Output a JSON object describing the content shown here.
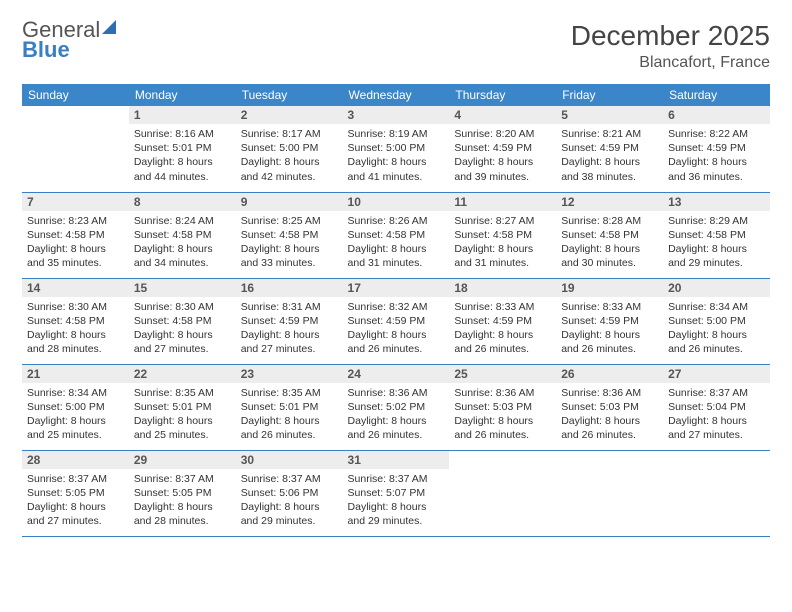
{
  "logo": {
    "line1": "General",
    "line2": "Blue"
  },
  "title": "December 2025",
  "location": "Blancafort, France",
  "colors": {
    "header_bg": "#3a86c8",
    "header_fg": "#ffffff",
    "daynum_bg": "#ededed",
    "border": "#3a7fc4",
    "text": "#333333",
    "logo_gray": "#555555",
    "logo_blue": "#3a7fc4"
  },
  "weekdays": [
    "Sunday",
    "Monday",
    "Tuesday",
    "Wednesday",
    "Thursday",
    "Friday",
    "Saturday"
  ],
  "weeks": [
    [
      null,
      {
        "n": "1",
        "sr": "8:16 AM",
        "ss": "5:01 PM",
        "dl": "8 hours and 44 minutes."
      },
      {
        "n": "2",
        "sr": "8:17 AM",
        "ss": "5:00 PM",
        "dl": "8 hours and 42 minutes."
      },
      {
        "n": "3",
        "sr": "8:19 AM",
        "ss": "5:00 PM",
        "dl": "8 hours and 41 minutes."
      },
      {
        "n": "4",
        "sr": "8:20 AM",
        "ss": "4:59 PM",
        "dl": "8 hours and 39 minutes."
      },
      {
        "n": "5",
        "sr": "8:21 AM",
        "ss": "4:59 PM",
        "dl": "8 hours and 38 minutes."
      },
      {
        "n": "6",
        "sr": "8:22 AM",
        "ss": "4:59 PM",
        "dl": "8 hours and 36 minutes."
      }
    ],
    [
      {
        "n": "7",
        "sr": "8:23 AM",
        "ss": "4:58 PM",
        "dl": "8 hours and 35 minutes."
      },
      {
        "n": "8",
        "sr": "8:24 AM",
        "ss": "4:58 PM",
        "dl": "8 hours and 34 minutes."
      },
      {
        "n": "9",
        "sr": "8:25 AM",
        "ss": "4:58 PM",
        "dl": "8 hours and 33 minutes."
      },
      {
        "n": "10",
        "sr": "8:26 AM",
        "ss": "4:58 PM",
        "dl": "8 hours and 31 minutes."
      },
      {
        "n": "11",
        "sr": "8:27 AM",
        "ss": "4:58 PM",
        "dl": "8 hours and 31 minutes."
      },
      {
        "n": "12",
        "sr": "8:28 AM",
        "ss": "4:58 PM",
        "dl": "8 hours and 30 minutes."
      },
      {
        "n": "13",
        "sr": "8:29 AM",
        "ss": "4:58 PM",
        "dl": "8 hours and 29 minutes."
      }
    ],
    [
      {
        "n": "14",
        "sr": "8:30 AM",
        "ss": "4:58 PM",
        "dl": "8 hours and 28 minutes."
      },
      {
        "n": "15",
        "sr": "8:30 AM",
        "ss": "4:58 PM",
        "dl": "8 hours and 27 minutes."
      },
      {
        "n": "16",
        "sr": "8:31 AM",
        "ss": "4:59 PM",
        "dl": "8 hours and 27 minutes."
      },
      {
        "n": "17",
        "sr": "8:32 AM",
        "ss": "4:59 PM",
        "dl": "8 hours and 26 minutes."
      },
      {
        "n": "18",
        "sr": "8:33 AM",
        "ss": "4:59 PM",
        "dl": "8 hours and 26 minutes."
      },
      {
        "n": "19",
        "sr": "8:33 AM",
        "ss": "4:59 PM",
        "dl": "8 hours and 26 minutes."
      },
      {
        "n": "20",
        "sr": "8:34 AM",
        "ss": "5:00 PM",
        "dl": "8 hours and 26 minutes."
      }
    ],
    [
      {
        "n": "21",
        "sr": "8:34 AM",
        "ss": "5:00 PM",
        "dl": "8 hours and 25 minutes."
      },
      {
        "n": "22",
        "sr": "8:35 AM",
        "ss": "5:01 PM",
        "dl": "8 hours and 25 minutes."
      },
      {
        "n": "23",
        "sr": "8:35 AM",
        "ss": "5:01 PM",
        "dl": "8 hours and 26 minutes."
      },
      {
        "n": "24",
        "sr": "8:36 AM",
        "ss": "5:02 PM",
        "dl": "8 hours and 26 minutes."
      },
      {
        "n": "25",
        "sr": "8:36 AM",
        "ss": "5:03 PM",
        "dl": "8 hours and 26 minutes."
      },
      {
        "n": "26",
        "sr": "8:36 AM",
        "ss": "5:03 PM",
        "dl": "8 hours and 26 minutes."
      },
      {
        "n": "27",
        "sr": "8:37 AM",
        "ss": "5:04 PM",
        "dl": "8 hours and 27 minutes."
      }
    ],
    [
      {
        "n": "28",
        "sr": "8:37 AM",
        "ss": "5:05 PM",
        "dl": "8 hours and 27 minutes."
      },
      {
        "n": "29",
        "sr": "8:37 AM",
        "ss": "5:05 PM",
        "dl": "8 hours and 28 minutes."
      },
      {
        "n": "30",
        "sr": "8:37 AM",
        "ss": "5:06 PM",
        "dl": "8 hours and 29 minutes."
      },
      {
        "n": "31",
        "sr": "8:37 AM",
        "ss": "5:07 PM",
        "dl": "8 hours and 29 minutes."
      },
      null,
      null,
      null
    ]
  ],
  "labels": {
    "sunrise": "Sunrise: ",
    "sunset": "Sunset: ",
    "daylight": "Daylight: "
  }
}
